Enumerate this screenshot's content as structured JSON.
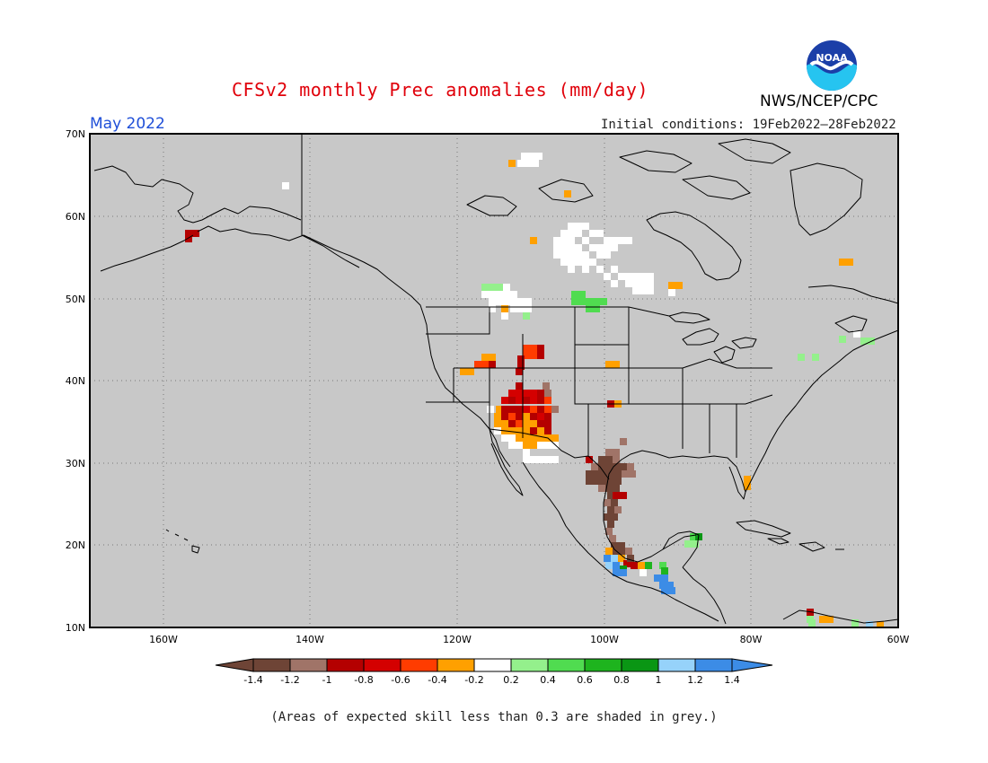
{
  "header": {
    "title": "CFSv2 monthly Prec anomalies (mm/day)",
    "agency": "NWS/NCEP/CPC",
    "logo_text": "NOAA",
    "target_month": "May 2022",
    "initial_conditions": "Initial conditions: 19Feb2022–28Feb2022"
  },
  "map": {
    "lat_labels": [
      "70N",
      "60N",
      "50N",
      "40N",
      "30N",
      "20N",
      "10N"
    ],
    "lon_labels": [
      "160W",
      "140W",
      "120W",
      "100W",
      "80W",
      "60W"
    ],
    "background_color": "#c8c8c8",
    "grid": "dotted"
  },
  "colorbar": {
    "colors": [
      "#6e4436",
      "#a07468",
      "#b40000",
      "#d40000",
      "#ff3c00",
      "#ffa000",
      "#ffffff",
      "#94f08c",
      "#50dc50",
      "#1eb41e",
      "#0a9614",
      "#96d2fa",
      "#3c8ce6"
    ],
    "under_color": "#6e4436",
    "over_color": "#3c8ce6",
    "tick_labels": [
      "-1.4",
      "-1.2",
      "-1",
      "-0.8",
      "-0.6",
      "-0.4",
      "-0.2",
      "0.2",
      "0.4",
      "0.6",
      "0.8",
      "1",
      "1.2",
      "1.4"
    ]
  },
  "footnote": "(Areas of expected skill less than 0.3 are shaded in grey.)"
}
